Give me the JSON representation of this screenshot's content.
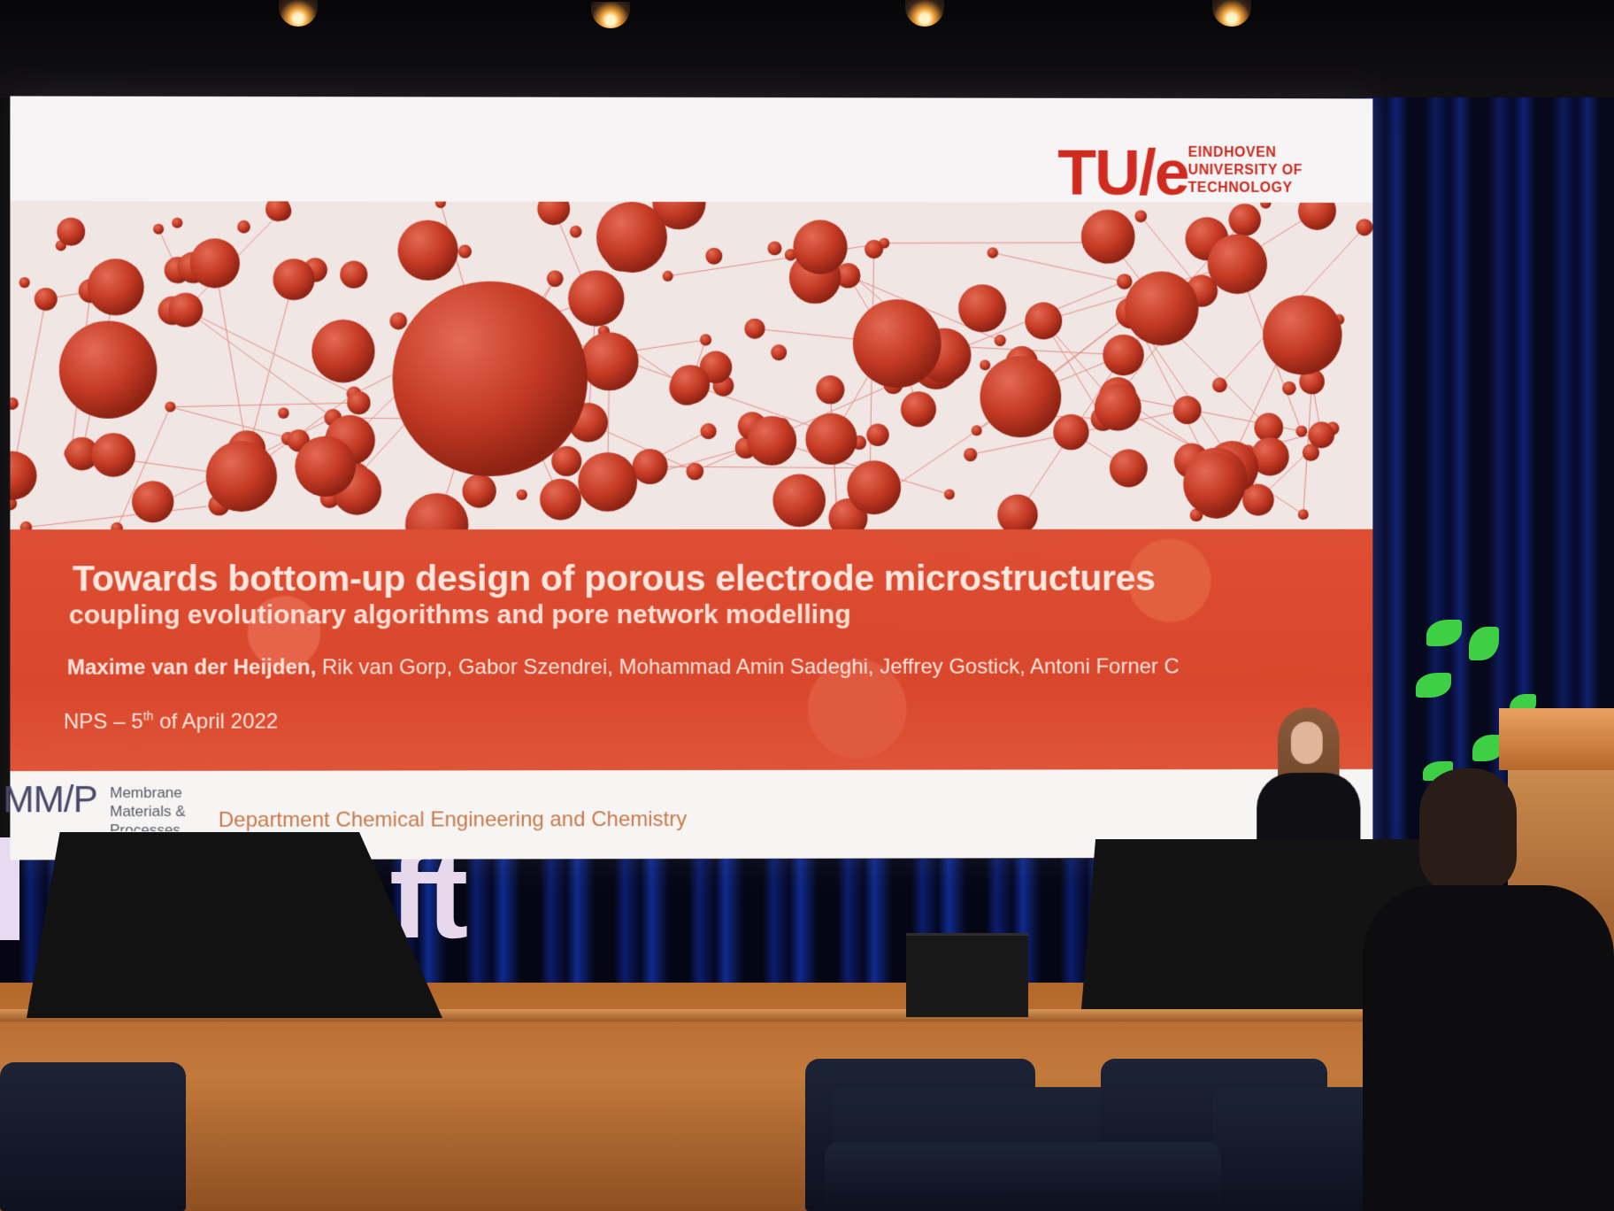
{
  "slide": {
    "logo_mark": "TU/e",
    "logo_name_line1": "EINDHOVEN",
    "logo_name_line2": "UNIVERSITY OF",
    "logo_name_line3": "TECHNOLOGY",
    "title": "Towards bottom-up design of porous electrode microstructures",
    "subtitle": "coupling evolutionary algorithms and pore network modelling",
    "lead_author": "Maxime van der Heijden,",
    "coauthors": " Rik van Gorp, Gabor Szendrei, Mohammad Amin Sadeghi, Jeffrey Gostick, Antoni Forner C",
    "event_prefix": "NPS – 5",
    "event_sup": "th",
    "event_suffix": " of April 2022",
    "mmp_logo": "MM/P",
    "mmp_line1": "Membrane",
    "mmp_line2": "Materials &",
    "mmp_line3": "Processes",
    "department": "Department Chemical Engineering and Chemistry"
  },
  "stage_letters": "ft",
  "colors": {
    "tue_red": "#d02b20",
    "title_band": "#dd4e33",
    "sphere": "#c0392b",
    "curtain": "#0d1a5a",
    "stage_wood": "#c27a3c"
  }
}
